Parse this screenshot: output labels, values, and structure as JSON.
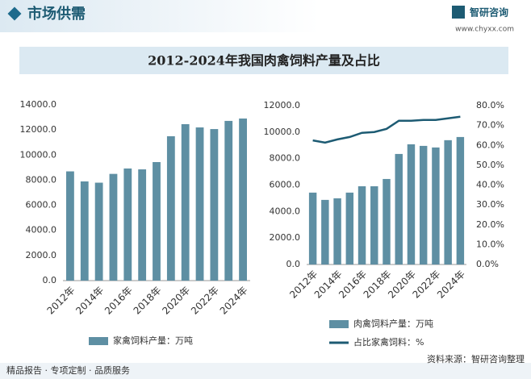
{
  "header": {
    "title": "市场供需",
    "logo": "智研咨询",
    "url": "www.chyxx.com"
  },
  "title": "2012-2024年我国肉禽饲料产量及占比",
  "footer": {
    "slogan": "精品报告 · 专项定制 · 品质服务",
    "source": "资料来源：智研咨询整理"
  },
  "chart_data": [
    {
      "type": "bar",
      "categories": [
        "2012年",
        null,
        "2014年",
        null,
        "2016年",
        null,
        "2018年",
        null,
        "2020年",
        null,
        "2022年",
        null,
        "2024年"
      ],
      "series": [
        {
          "name": "家禽饲料产量：万吨",
          "color": "#5e8fa3",
          "values": [
            8700,
            7900,
            7800,
            8500,
            8930,
            8860,
            9440,
            11500,
            12460,
            12200,
            12070,
            12720,
            12910
          ]
        }
      ],
      "ylim": [
        0,
        14000
      ],
      "yticks": [
        {
          "value": 0,
          "label": "0.0"
        },
        {
          "value": 2000,
          "label": "2000.0"
        },
        {
          "value": 4000,
          "label": "4000.0"
        },
        {
          "value": 6000,
          "label": "6000.0"
        },
        {
          "value": 8000,
          "label": "8000.0"
        },
        {
          "value": 10000,
          "label": "10000.0"
        },
        {
          "value": 12000,
          "label": "12000.0"
        },
        {
          "value": 14000,
          "label": "14000.0"
        }
      ]
    },
    {
      "type": "bar-line",
      "categories": [
        "2012年",
        null,
        "2014年",
        null,
        "2016年",
        null,
        "2018年",
        null,
        "2020年",
        null,
        "2022年",
        null,
        "2024年"
      ],
      "series": [
        {
          "name": "肉禽饲料产量：万吨",
          "type": "bar",
          "color": "#5e8fa3",
          "values": [
            5430,
            4880,
            5000,
            5430,
            5910,
            5910,
            6460,
            8350,
            9080,
            8960,
            8840,
            9390,
            9630
          ]
        },
        {
          "name": "占比家禽饲料：%",
          "type": "line",
          "axis": "y2",
          "color": "#1d5b73",
          "values": [
            62.5,
            61.4,
            63.0,
            64.2,
            66.3,
            66.7,
            68.3,
            72.4,
            72.4,
            72.8,
            72.8,
            73.6,
            74.4
          ]
        }
      ],
      "ylim": [
        0,
        12000
      ],
      "yticks": [
        {
          "value": 0,
          "label": "0.0"
        },
        {
          "value": 2000,
          "label": "2000.0"
        },
        {
          "value": 4000,
          "label": "4000.0"
        },
        {
          "value": 6000,
          "label": "6000.0"
        },
        {
          "value": 8000,
          "label": "8000.0"
        },
        {
          "value": 10000,
          "label": "10000.0"
        },
        {
          "value": 12000,
          "label": "12000.0"
        }
      ],
      "y2lim": [
        0,
        80
      ],
      "y2ticks": [
        {
          "value": 0,
          "label": "0.0%"
        },
        {
          "value": 10,
          "label": "10.0%"
        },
        {
          "value": 20,
          "label": "20.0%"
        },
        {
          "value": 30,
          "label": "30.0%"
        },
        {
          "value": 40,
          "label": "40.0%"
        },
        {
          "value": 50,
          "label": "50.0%"
        },
        {
          "value": 60,
          "label": "60.0%"
        },
        {
          "value": 70,
          "label": "70.0%"
        },
        {
          "value": 80,
          "label": "80.0%"
        }
      ]
    }
  ]
}
